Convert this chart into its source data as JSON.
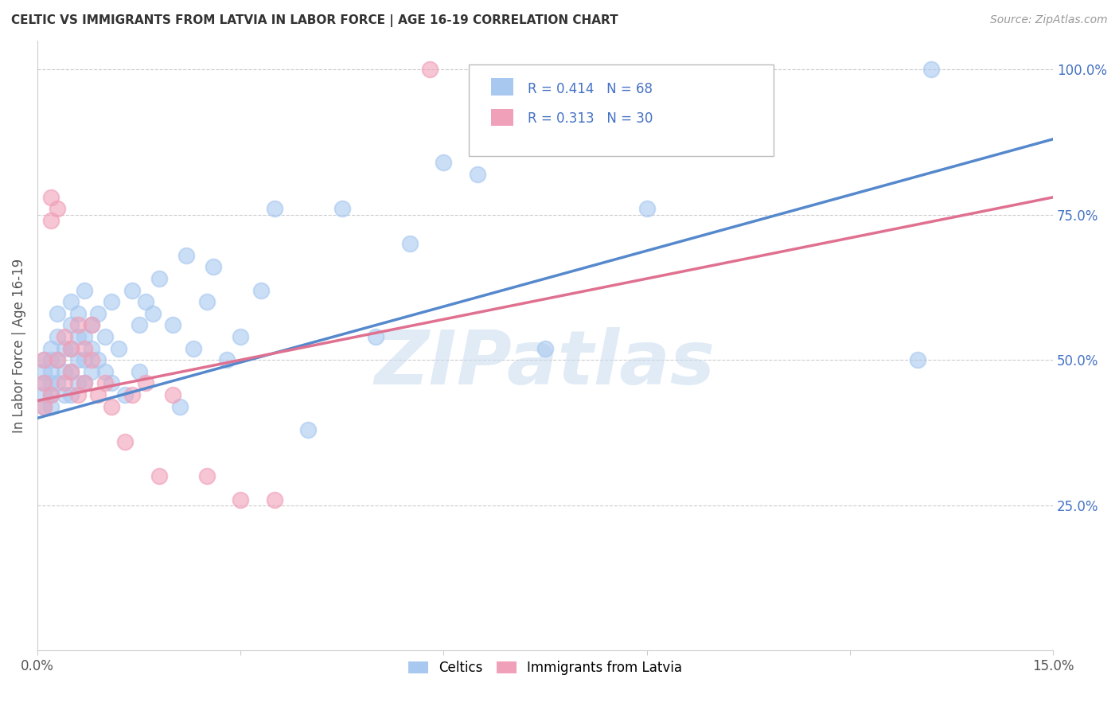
{
  "title": "CELTIC VS IMMIGRANTS FROM LATVIA IN LABOR FORCE | AGE 16-19 CORRELATION CHART",
  "source": "Source: ZipAtlas.com",
  "ylabel": "In Labor Force | Age 16-19",
  "xlim": [
    0.0,
    0.15
  ],
  "ylim": [
    0.0,
    1.05
  ],
  "xticks": [
    0.0,
    0.03,
    0.06,
    0.09,
    0.12,
    0.15
  ],
  "xtick_labels": [
    "0.0%",
    "",
    "",
    "",
    "",
    "15.0%"
  ],
  "ytick_vals_right": [
    0.25,
    0.5,
    0.75,
    1.0
  ],
  "ytick_labels_right": [
    "25.0%",
    "50.0%",
    "75.0%",
    "100.0%"
  ],
  "watermark": "ZIPatlas",
  "legend_r1": "R = 0.414",
  "legend_n1": "N = 68",
  "legend_r2": "R = 0.313",
  "legend_n2": "N = 30",
  "color_blue": "#A8C8F0",
  "color_pink": "#F0A0B8",
  "color_blue_line": "#5588CC",
  "color_pink_line": "#E07090",
  "color_text_blue": "#4472C4",
  "trendline_blue_y0": 0.4,
  "trendline_blue_y1": 0.88,
  "trendline_pink_y0": 0.43,
  "trendline_pink_y1": 0.78,
  "celtics_x": [
    0.001,
    0.001,
    0.001,
    0.001,
    0.001,
    0.002,
    0.002,
    0.002,
    0.002,
    0.002,
    0.002,
    0.003,
    0.003,
    0.003,
    0.003,
    0.004,
    0.004,
    0.004,
    0.005,
    0.005,
    0.005,
    0.005,
    0.005,
    0.006,
    0.006,
    0.006,
    0.006,
    0.007,
    0.007,
    0.007,
    0.007,
    0.008,
    0.008,
    0.008,
    0.009,
    0.009,
    0.01,
    0.01,
    0.011,
    0.011,
    0.012,
    0.013,
    0.014,
    0.015,
    0.015,
    0.016,
    0.017,
    0.018,
    0.02,
    0.021,
    0.022,
    0.023,
    0.025,
    0.026,
    0.028,
    0.03,
    0.033,
    0.035,
    0.04,
    0.045,
    0.05,
    0.055,
    0.06,
    0.065,
    0.075,
    0.09,
    0.13,
    0.132
  ],
  "celtics_y": [
    0.48,
    0.46,
    0.44,
    0.42,
    0.5,
    0.46,
    0.48,
    0.5,
    0.52,
    0.44,
    0.42,
    0.46,
    0.5,
    0.54,
    0.58,
    0.44,
    0.48,
    0.52,
    0.44,
    0.48,
    0.52,
    0.56,
    0.6,
    0.46,
    0.5,
    0.54,
    0.58,
    0.46,
    0.5,
    0.54,
    0.62,
    0.48,
    0.52,
    0.56,
    0.5,
    0.58,
    0.48,
    0.54,
    0.46,
    0.6,
    0.52,
    0.44,
    0.62,
    0.48,
    0.56,
    0.6,
    0.58,
    0.64,
    0.56,
    0.42,
    0.68,
    0.52,
    0.6,
    0.66,
    0.5,
    0.54,
    0.62,
    0.76,
    0.38,
    0.76,
    0.54,
    0.7,
    0.84,
    0.82,
    0.52,
    0.76,
    0.5,
    1.0
  ],
  "latvia_x": [
    0.001,
    0.001,
    0.001,
    0.002,
    0.002,
    0.003,
    0.003,
    0.004,
    0.004,
    0.005,
    0.005,
    0.006,
    0.006,
    0.007,
    0.007,
    0.008,
    0.008,
    0.009,
    0.01,
    0.011,
    0.013,
    0.014,
    0.016,
    0.018,
    0.02,
    0.025,
    0.03,
    0.035,
    0.058,
    0.002
  ],
  "latvia_y": [
    0.5,
    0.46,
    0.42,
    0.78,
    0.74,
    0.76,
    0.5,
    0.54,
    0.46,
    0.52,
    0.48,
    0.56,
    0.44,
    0.52,
    0.46,
    0.56,
    0.5,
    0.44,
    0.46,
    0.42,
    0.36,
    0.44,
    0.46,
    0.3,
    0.44,
    0.3,
    0.26,
    0.26,
    1.0,
    0.44
  ]
}
